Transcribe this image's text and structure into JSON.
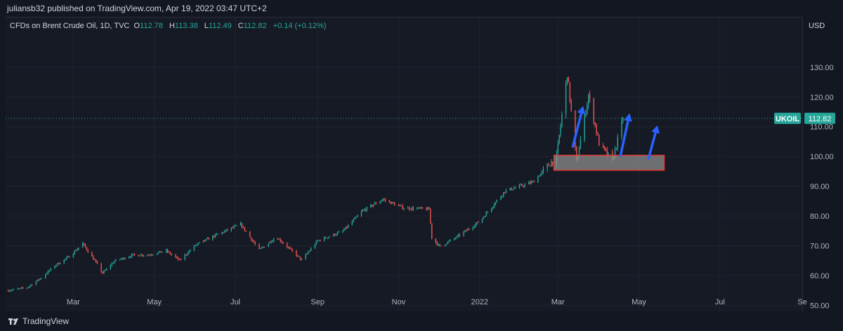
{
  "header": {
    "publisher": "juliansb32 published on TradingView.com, Apr 19, 2022 03:47 UTC+2"
  },
  "legend": {
    "instrument": "CFDs on Brent Crude Oil, 1D, TVC",
    "open_label": "O",
    "open": "112.78",
    "high_label": "H",
    "high": "113.38",
    "low_label": "L",
    "low": "112.49",
    "close_label": "C",
    "close": "112.82",
    "change": "+0.14 (+0.12%)"
  },
  "axis": {
    "currency": "USD"
  },
  "footer": {
    "brand": "TradingView"
  },
  "colors": {
    "up": "#26a69a",
    "down": "#ef5350",
    "zone_fill": "#8c8c8c",
    "zone_border": "#e53935",
    "arrow": "#2962ff",
    "last_price_bg": "#26a69a"
  },
  "chart_data": {
    "type": "candlestick",
    "symbol_label": "UKOIL",
    "last_price": 112.82,
    "last_price_label": "112.82",
    "y_ticks": [
      50,
      60,
      70,
      80,
      90,
      100,
      110,
      120,
      130
    ],
    "y_tick_labels": [
      "50.00",
      "60.00",
      "70.00",
      "80.00",
      "90.00",
      "100.00",
      "110.00",
      "120.00",
      "130.00"
    ],
    "ylim": [
      48.2,
      146.7
    ],
    "x_ticks": [
      {
        "date": "2021-03-01",
        "label": "Mar"
      },
      {
        "date": "2021-05-01",
        "label": "May"
      },
      {
        "date": "2021-07-01",
        "label": "Jul"
      },
      {
        "date": "2021-09-01",
        "label": "Sep"
      },
      {
        "date": "2021-11-01",
        "label": "Nov"
      },
      {
        "date": "2022-01-01",
        "label": "2022"
      },
      {
        "date": "2022-03-01",
        "label": "Mar"
      },
      {
        "date": "2022-05-01",
        "label": "May"
      },
      {
        "date": "2022-07-01",
        "label": "Jul"
      },
      {
        "date": "2022-09-01",
        "label": "Se"
      }
    ],
    "xlim": [
      "2021-01-09",
      "2022-09-01"
    ],
    "price_path": [
      [
        "2021-01-11",
        55.0
      ],
      [
        "2021-01-25",
        55.9
      ],
      [
        "2021-02-05",
        59.3
      ],
      [
        "2021-02-15",
        63.3
      ],
      [
        "2021-02-25",
        66.1
      ],
      [
        "2021-03-05",
        69.4
      ],
      [
        "2021-03-08",
        70.8
      ],
      [
        "2021-03-18",
        64.4
      ],
      [
        "2021-03-23",
        60.8
      ],
      [
        "2021-04-01",
        64.9
      ],
      [
        "2021-04-15",
        66.9
      ],
      [
        "2021-04-27",
        67.0
      ],
      [
        "2021-05-10",
        68.3
      ],
      [
        "2021-05-20",
        65.1
      ],
      [
        "2021-06-01",
        70.2
      ],
      [
        "2021-06-15",
        73.3
      ],
      [
        "2021-07-05",
        77.2
      ],
      [
        "2021-07-19",
        68.6
      ],
      [
        "2021-08-01",
        73.0
      ],
      [
        "2021-08-20",
        65.2
      ],
      [
        "2021-09-01",
        71.7
      ],
      [
        "2021-09-20",
        74.9
      ],
      [
        "2021-10-05",
        81.8
      ],
      [
        "2021-10-20",
        85.6
      ],
      [
        "2021-11-05",
        82.7
      ],
      [
        "2021-11-24",
        82.3
      ],
      [
        "2021-11-26",
        72.7
      ],
      [
        "2021-12-02",
        69.7
      ],
      [
        "2021-12-15",
        73.0
      ],
      [
        "2022-01-01",
        78.2
      ],
      [
        "2022-01-20",
        88.4
      ],
      [
        "2022-02-10",
        91.4
      ],
      [
        "2022-02-28",
        100.0
      ],
      [
        "2022-03-08",
        127.9
      ],
      [
        "2022-03-15",
        98.0
      ],
      [
        "2022-03-24",
        120.6
      ],
      [
        "2022-04-01",
        104.4
      ],
      [
        "2022-04-11",
        98.5
      ],
      [
        "2022-04-19",
        112.82
      ]
    ],
    "zone": {
      "x0": "2022-02-26",
      "x1": "2022-05-20",
      "y0": 95.4,
      "y1": 100.4
    },
    "arrows": [
      {
        "from": [
          "2022-03-12",
          103
        ],
        "to": [
          "2022-03-20",
          117
        ]
      },
      {
        "from": [
          "2022-04-17",
          100
        ],
        "to": [
          "2022-04-24",
          114.5
        ]
      },
      {
        "from": [
          "2022-05-08",
          99
        ],
        "to": [
          "2022-05-15",
          110.5
        ]
      }
    ]
  }
}
